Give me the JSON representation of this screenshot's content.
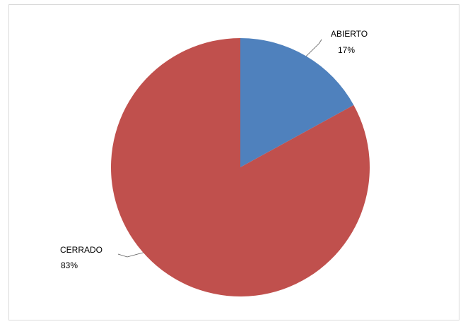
{
  "chart_data": {
    "type": "pie",
    "title": "",
    "slices": [
      {
        "label": "ABIERTO",
        "percent_label": "17%",
        "value": 17,
        "color": "#4f81bd"
      },
      {
        "label": "CERRADO",
        "percent_label": "83%",
        "value": 83,
        "color": "#c0504d"
      }
    ],
    "start_angle": "12 o'clock",
    "direction": "clockwise",
    "labels": "outside with leader lines",
    "legend": "none"
  }
}
